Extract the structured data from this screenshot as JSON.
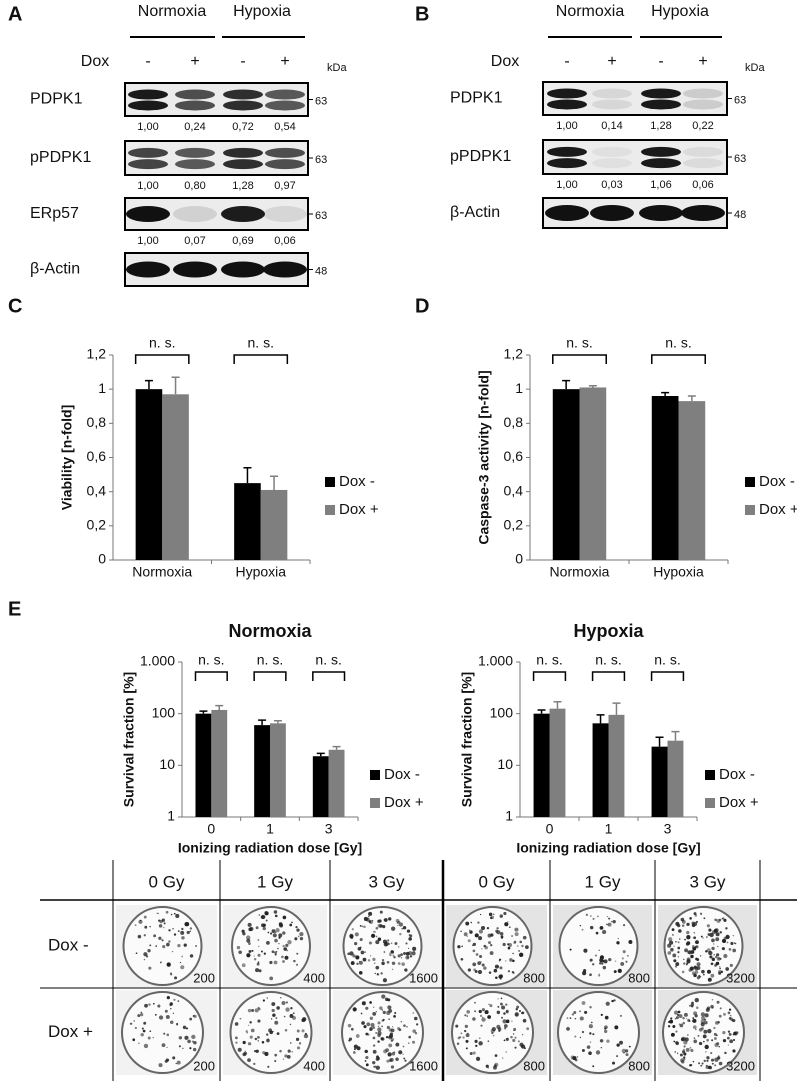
{
  "blots": [
    {
      "label": "A",
      "conditions": [
        "Normoxia",
        "Hypoxia"
      ],
      "treatment": "Dox",
      "signs": [
        "-",
        "+",
        "-",
        "+"
      ],
      "unit": "kDa",
      "rows": [
        {
          "protein": "PDPK1",
          "marker": "63",
          "values": [
            "1,00",
            "0,24",
            "0,72",
            "0,54"
          ]
        },
        {
          "protein": "pPDPK1",
          "marker": "63",
          "values": [
            "1,00",
            "0,80",
            "1,28",
            "0,97"
          ]
        },
        {
          "protein": "ERp57",
          "marker": "63",
          "values": [
            "1,00",
            "0,07",
            "0,69",
            "0,06"
          ]
        },
        {
          "protein": "β-Actin",
          "marker": "48"
        }
      ]
    },
    {
      "label": "B",
      "conditions": [
        "Normoxia",
        "Hypoxia"
      ],
      "treatment": "Dox",
      "signs": [
        "-",
        "+",
        "-",
        "+"
      ],
      "unit": "kDa",
      "rows": [
        {
          "protein": "PDPK1",
          "marker": "63",
          "values": [
            "1,00",
            "0,14",
            "1,28",
            "0,22"
          ]
        },
        {
          "protein": "pPDPK1",
          "marker": "63",
          "values": [
            "1,00",
            "0,03",
            "1,06",
            "0,06"
          ]
        },
        {
          "protein": "β-Actin",
          "marker": "48"
        }
      ]
    }
  ],
  "panel_labels": [
    "C",
    "D",
    "E"
  ],
  "chart_data": [
    {
      "type": "bar",
      "y_label": "Viability [n-fold]",
      "categories": [
        "Normoxia",
        "Hypoxia"
      ],
      "series": [
        {
          "name": "Dox -",
          "color": "#000000",
          "values": [
            1.0,
            0.45
          ],
          "errors": [
            0.05,
            0.09
          ]
        },
        {
          "name": "Dox +",
          "color": "#7f7f7f",
          "values": [
            0.97,
            0.41
          ],
          "errors": [
            0.1,
            0.08
          ]
        }
      ],
      "ylim": [
        0,
        1.2
      ],
      "yticks": [
        0,
        {
          "value": 0.2,
          "label": "0,2"
        },
        {
          "value": 0.4,
          "label": "0,4"
        },
        {
          "value": 0.6,
          "label": "0,6"
        },
        {
          "value": 0.8,
          "label": "0,8"
        },
        1,
        {
          "value": 1.2,
          "label": "1,2"
        }
      ],
      "annotations": [
        "n. s.",
        "n. s."
      ],
      "legend": "right"
    },
    {
      "type": "bar",
      "y_label": "Caspase-3 activity [n-fold]",
      "categories": [
        "Normoxia",
        "Hypoxia"
      ],
      "series": [
        {
          "name": "Dox -",
          "color": "#000000",
          "values": [
            1.0,
            0.96
          ],
          "errors": [
            0.05,
            0.02
          ]
        },
        {
          "name": "Dox +",
          "color": "#7f7f7f",
          "values": [
            1.01,
            0.93
          ],
          "errors": [
            0.01,
            0.03
          ]
        }
      ],
      "ylim": [
        0,
        1.2
      ],
      "yticks": [
        0,
        {
          "value": 0.2,
          "label": "0,2"
        },
        {
          "value": 0.4,
          "label": "0,4"
        },
        {
          "value": 0.6,
          "label": "0,6"
        },
        {
          "value": 0.8,
          "label": "0,8"
        },
        1,
        {
          "value": 1.2,
          "label": "1,2"
        }
      ],
      "annotations": [
        "n. s.",
        "n. s."
      ],
      "legend": "right"
    },
    {
      "type": "bar",
      "title": "Normoxia",
      "x_label": "Ionizing radiation dose [Gy]",
      "y_label": "Survival fraction [%]",
      "categories": [
        "0",
        "1",
        "3"
      ],
      "series": [
        {
          "name": "Dox -",
          "color": "#000000",
          "values": [
            100,
            60,
            15
          ],
          "errors": [
            12,
            15,
            2
          ]
        },
        {
          "name": "Dox +",
          "color": "#7f7f7f",
          "values": [
            118,
            65,
            20
          ],
          "errors": [
            25,
            8,
            3
          ]
        }
      ],
      "log_scale": true,
      "ylim": [
        1,
        1000
      ],
      "yticks": [
        1,
        10,
        100,
        {
          "value": 1000,
          "label": "1.000"
        }
      ],
      "annotations": [
        "n. s.",
        "n. s.",
        "n. s."
      ],
      "legend": "right"
    },
    {
      "type": "bar",
      "title": "Hypoxia",
      "x_label": "Ionizing radiation dose [Gy]",
      "y_label": "Survival fraction [%]",
      "categories": [
        "0",
        "1",
        "3"
      ],
      "series": [
        {
          "name": "Dox -",
          "color": "#000000",
          "values": [
            100,
            65,
            23
          ],
          "errors": [
            18,
            30,
            12
          ]
        },
        {
          "name": "Dox +",
          "color": "#7f7f7f",
          "values": [
            125,
            95,
            30
          ],
          "errors": [
            45,
            65,
            15
          ]
        }
      ],
      "log_scale": true,
      "ylim": [
        1,
        1000
      ],
      "yticks": [
        1,
        10,
        100,
        {
          "value": 1000,
          "label": "1.000"
        }
      ],
      "annotations": [
        "n. s.",
        "n. s.",
        "n. s."
      ],
      "legend": "right"
    }
  ],
  "colonies": {
    "columns": [
      "0 Gy",
      "1 Gy",
      "3 Gy",
      "0 Gy",
      "1 Gy",
      "3 Gy"
    ],
    "rows": [
      {
        "label": "Dox -",
        "counts": [
          200,
          400,
          1600,
          800,
          800,
          3200
        ]
      },
      {
        "label": "Dox +",
        "counts": [
          200,
          400,
          1600,
          800,
          800,
          3200
        ]
      }
    ]
  }
}
